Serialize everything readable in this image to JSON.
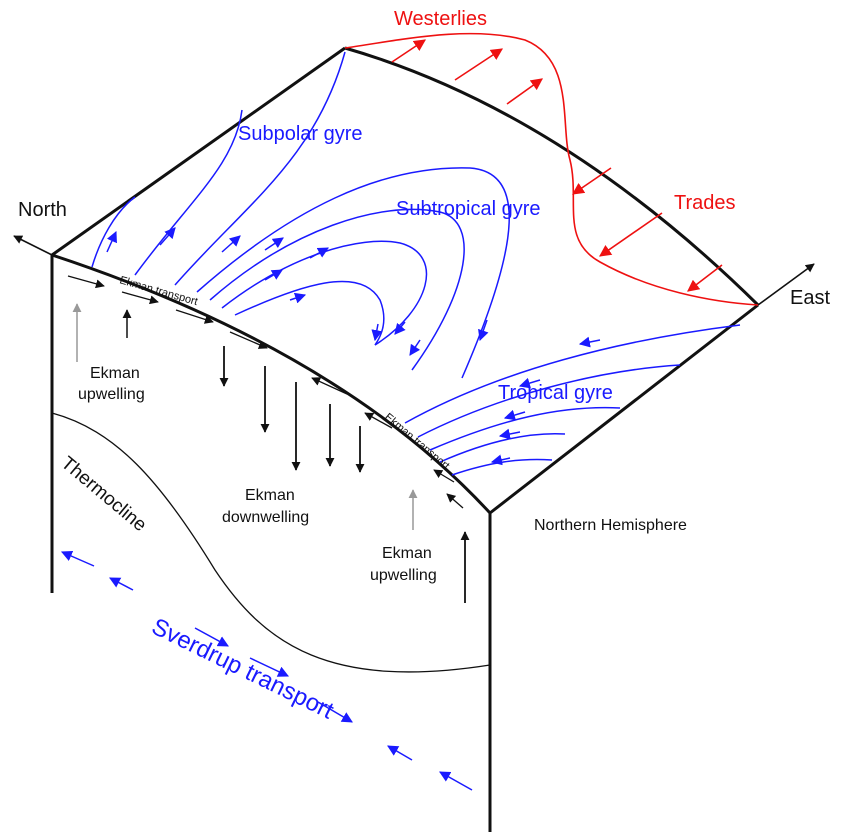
{
  "colors": {
    "ocean_circulation": "#1a1aff",
    "winds": "#ee1111",
    "structure": "#111111",
    "upwelling_arrow": "#999999"
  },
  "labels": {
    "north": "North",
    "east": "East",
    "westerlies": "Westerlies",
    "trades": "Trades",
    "subpolar_gyre": "Subpolar gyre",
    "subtropical_gyre": "Subtropical gyre",
    "tropical_gyre": "Tropical gyre",
    "ekman_transport_north": "Ekman transport",
    "ekman_transport_south": "Ekman transport",
    "ekman_upwelling_left_1": "Ekman",
    "ekman_upwelling_left_2": "upwelling",
    "ekman_downwelling_1": "Ekman",
    "ekman_downwelling_2": "downwelling",
    "ekman_upwelling_right_1": "Ekman",
    "ekman_upwelling_right_2": "upwelling",
    "northern_hemisphere": "Northern Hemisphere",
    "thermocline": "Thermocline",
    "sverdrup_transport": "Sverdrup transport"
  }
}
